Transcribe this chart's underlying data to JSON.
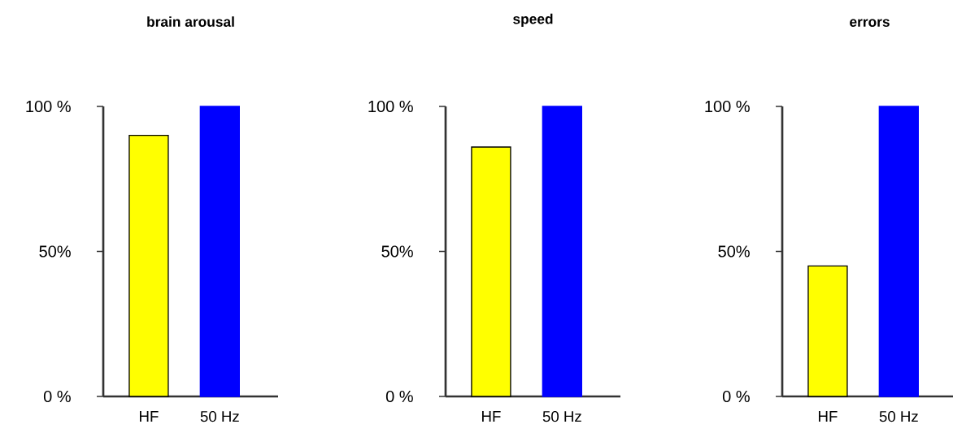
{
  "chart_data": [
    {
      "type": "bar",
      "title": "brain arousal",
      "categories": [
        "HF",
        "50 Hz"
      ],
      "values": [
        90,
        100
      ],
      "colors": [
        "#ffff00",
        "#0000ff"
      ],
      "ylim": [
        0,
        100
      ],
      "yticks": [
        {
          "value": 0,
          "label": "0 %"
        },
        {
          "value": 50,
          "label": "50%"
        },
        {
          "value": 100,
          "label": "100 %"
        }
      ]
    },
    {
      "type": "bar",
      "title": "speed",
      "categories": [
        "HF",
        "50 Hz"
      ],
      "values": [
        86,
        100
      ],
      "colors": [
        "#ffff00",
        "#0000ff"
      ],
      "ylim": [
        0,
        100
      ],
      "yticks": [
        {
          "value": 0,
          "label": "0 %"
        },
        {
          "value": 50,
          "label": "50%"
        },
        {
          "value": 100,
          "label": "100 %"
        }
      ]
    },
    {
      "type": "bar",
      "title": "errors",
      "categories": [
        "HF",
        "50 Hz"
      ],
      "values": [
        45,
        100
      ],
      "colors": [
        "#ffff00",
        "#0000ff"
      ],
      "ylim": [
        0,
        100
      ],
      "yticks": [
        {
          "value": 0,
          "label": "0 %"
        },
        {
          "value": 50,
          "label": "50%"
        },
        {
          "value": 100,
          "label": "100 %"
        }
      ]
    }
  ]
}
